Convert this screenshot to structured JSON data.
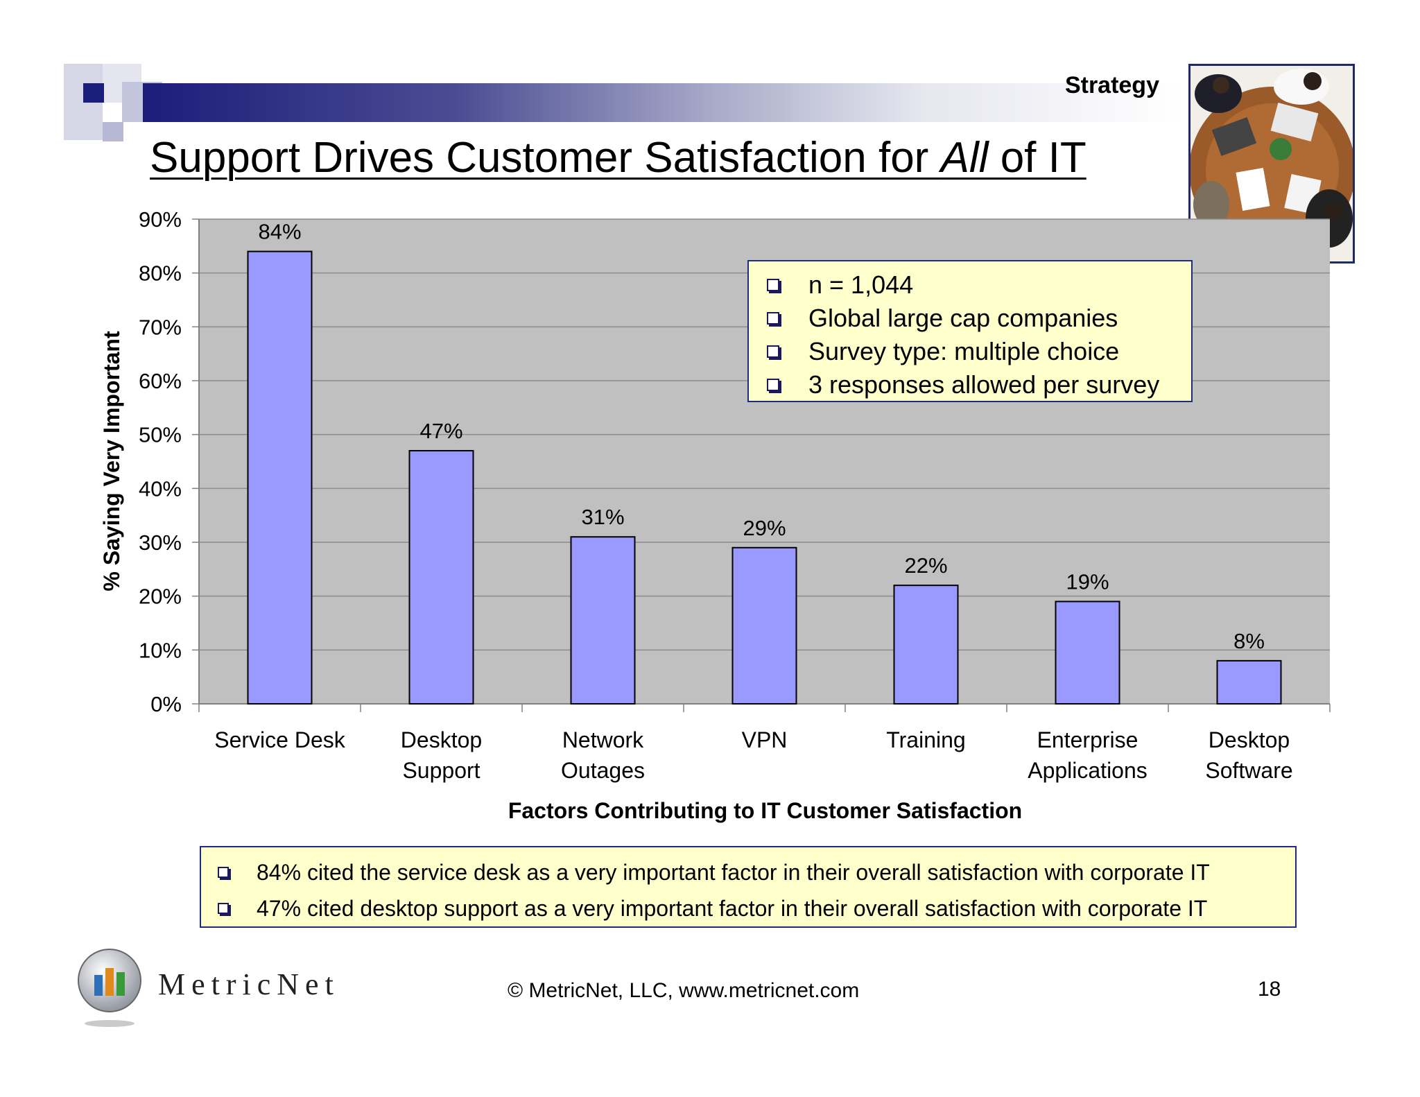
{
  "header": {
    "section_label": "Strategy",
    "title_prefix": "Support Drives Customer Satisfaction for ",
    "title_emphasis": "All",
    "title_suffix": " of IT"
  },
  "colors": {
    "bar_fill": "#9999ff",
    "plot_background": "#c0c0c0",
    "callout_background": "#ffffcc",
    "callout_border": "#1e2a80",
    "header_gradient_dark": "#1b1d7a"
  },
  "chart_data": {
    "type": "bar",
    "categories": [
      [
        "Service Desk"
      ],
      [
        "Desktop",
        "Support"
      ],
      [
        "Network",
        "Outages"
      ],
      [
        "VPN"
      ],
      [
        "Training"
      ],
      [
        "Enterprise",
        "Applications"
      ],
      [
        "Desktop",
        "Software"
      ]
    ],
    "values": [
      84,
      47,
      31,
      29,
      22,
      19,
      8
    ],
    "data_labels": [
      "84%",
      "47%",
      "31%",
      "29%",
      "22%",
      "19%",
      "8%"
    ],
    "xlabel": "Factors Contributing to IT Customer Satisfaction",
    "ylabel": "% Saying Very Important",
    "ylim": [
      0,
      90
    ],
    "yticks": [
      0,
      10,
      20,
      30,
      40,
      50,
      60,
      70,
      80,
      90
    ],
    "ytick_labels": [
      "0%",
      "10%",
      "20%",
      "30%",
      "40%",
      "50%",
      "60%",
      "70%",
      "80%",
      "90%"
    ],
    "grid": true,
    "legend": "none"
  },
  "survey_notes": [
    "n = 1,044",
    "Global large cap companies",
    "Survey type: multiple choice",
    "3 responses allowed per survey"
  ],
  "findings": [
    "84% cited the service desk as a very important factor in their overall satisfaction with corporate IT",
    "47% cited desktop support as a very important factor in their overall satisfaction with corporate IT"
  ],
  "footer": {
    "brand": "MetricNet",
    "copyright": "© MetricNet, LLC, www.metricnet.com",
    "page_number": "18"
  },
  "icons": {
    "bullet": "square-bullet-icon",
    "logo": "metricnet-bars-logo-icon",
    "photo": "business-meeting-photo"
  }
}
